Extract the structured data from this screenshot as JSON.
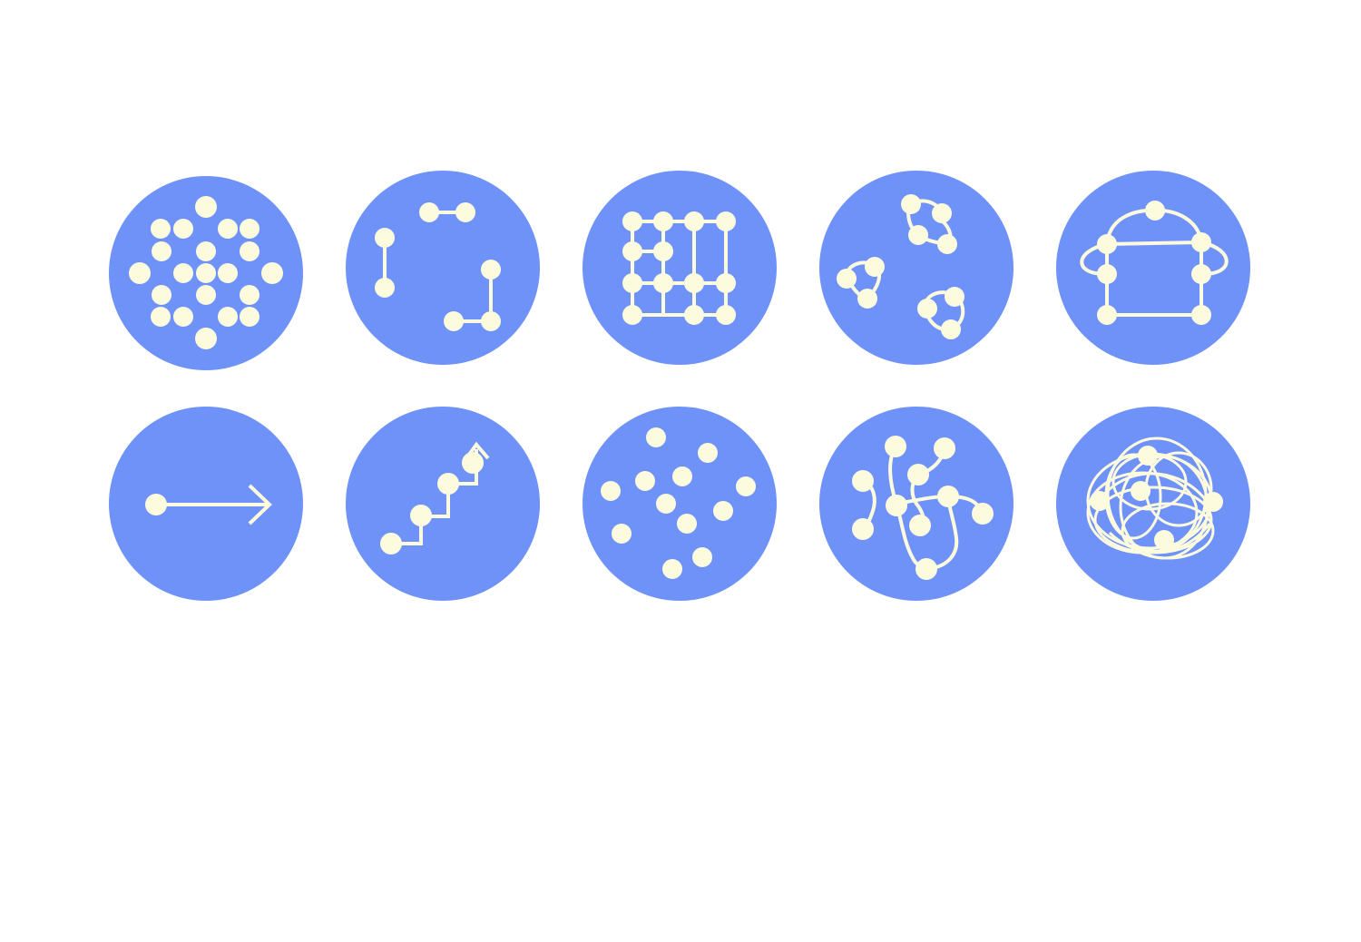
{
  "colors": {
    "background": "#ffffff",
    "circle_fill": "#6f92f8",
    "node_fill": "#fdfbde",
    "stroke": "#fdfbde"
  },
  "icons": [
    {
      "row": 1,
      "col": 1,
      "name": "concentric-cluster-icon"
    },
    {
      "row": 1,
      "col": 2,
      "name": "paired-nodes-icon"
    },
    {
      "row": 1,
      "col": 3,
      "name": "grid-network-icon"
    },
    {
      "row": 1,
      "col": 4,
      "name": "small-clusters-icon"
    },
    {
      "row": 1,
      "col": 5,
      "name": "looped-hierarchy-icon"
    },
    {
      "row": 2,
      "col": 1,
      "name": "linear-arrow-icon"
    },
    {
      "row": 2,
      "col": 2,
      "name": "stepped-growth-icon"
    },
    {
      "row": 2,
      "col": 3,
      "name": "scattered-nodes-icon"
    },
    {
      "row": 2,
      "col": 4,
      "name": "branching-network-icon"
    },
    {
      "row": 2,
      "col": 5,
      "name": "tangled-network-icon"
    }
  ]
}
